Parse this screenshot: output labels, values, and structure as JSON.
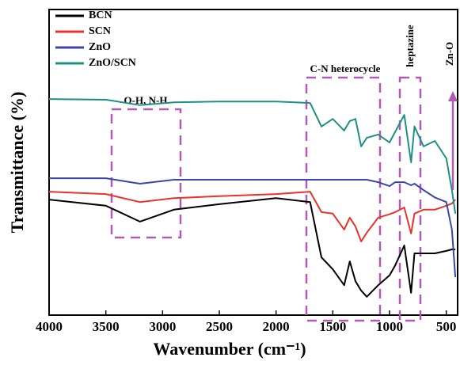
{
  "chart_data": {
    "type": "line",
    "x_label": "Wavenumber (cm⁻¹)",
    "y_label": "Transmittance (%)",
    "x": [
      4000,
      3500,
      3200,
      2900,
      2500,
      2000,
      1700,
      1600,
      1500,
      1400,
      1350,
      1300,
      1250,
      1200,
      1100,
      1000,
      950,
      870,
      810,
      780,
      700,
      600,
      500,
      450,
      420
    ],
    "series": [
      {
        "name": "BCN",
        "color": "#000000",
        "values": [
          37.8,
          35.8,
          30.6,
          34.5,
          36.3,
          38.3,
          37,
          18.9,
          15,
          9.8,
          17.6,
          11.1,
          8,
          6,
          9.8,
          13,
          16.3,
          22.8,
          7.3,
          20.2,
          20.2,
          20.2,
          21,
          21.5,
          21.5
        ]
      },
      {
        "name": "SCN",
        "color": "#e8332d",
        "values": [
          40.4,
          39.6,
          37,
          38.3,
          38.9,
          39.6,
          40.4,
          33.7,
          33.2,
          28,
          31.9,
          29,
          24.1,
          27,
          31.9,
          33,
          33.7,
          35.2,
          26.7,
          33.2,
          34.5,
          34.5,
          35.8,
          36.5,
          37.8
        ]
      },
      {
        "name": "ZnO",
        "color": "#3a46a8",
        "values": [
          44.8,
          44.8,
          43,
          44.3,
          44.3,
          44.3,
          44.3,
          44.3,
          44.3,
          44.3,
          44.3,
          44.3,
          44.3,
          44.3,
          43.5,
          42.2,
          43.5,
          43.5,
          42.5,
          43,
          40.9,
          38.5,
          37,
          28,
          12.4
        ]
      },
      {
        "name": "ZnO/SCN",
        "color": "#1f8f86",
        "values": [
          70.7,
          70.5,
          68.7,
          69.6,
          69.9,
          69.9,
          69.4,
          61.7,
          64.2,
          60.4,
          63.5,
          64.2,
          55.2,
          58,
          59.1,
          56.5,
          60,
          65.5,
          50,
          61.7,
          55.2,
          57,
          51.3,
          40.9,
          33.2
        ]
      }
    ],
    "annotations": [
      "O-H, N-H",
      "C-N heterocycle",
      "heptazine",
      "Zn-O"
    ],
    "xlim": [
      4000,
      400
    ],
    "xticks": [
      4000,
      3500,
      3000,
      2500,
      2000,
      1500,
      1000,
      500
    ],
    "ylim": [
      0,
      100
    ],
    "legend": "upper left"
  }
}
